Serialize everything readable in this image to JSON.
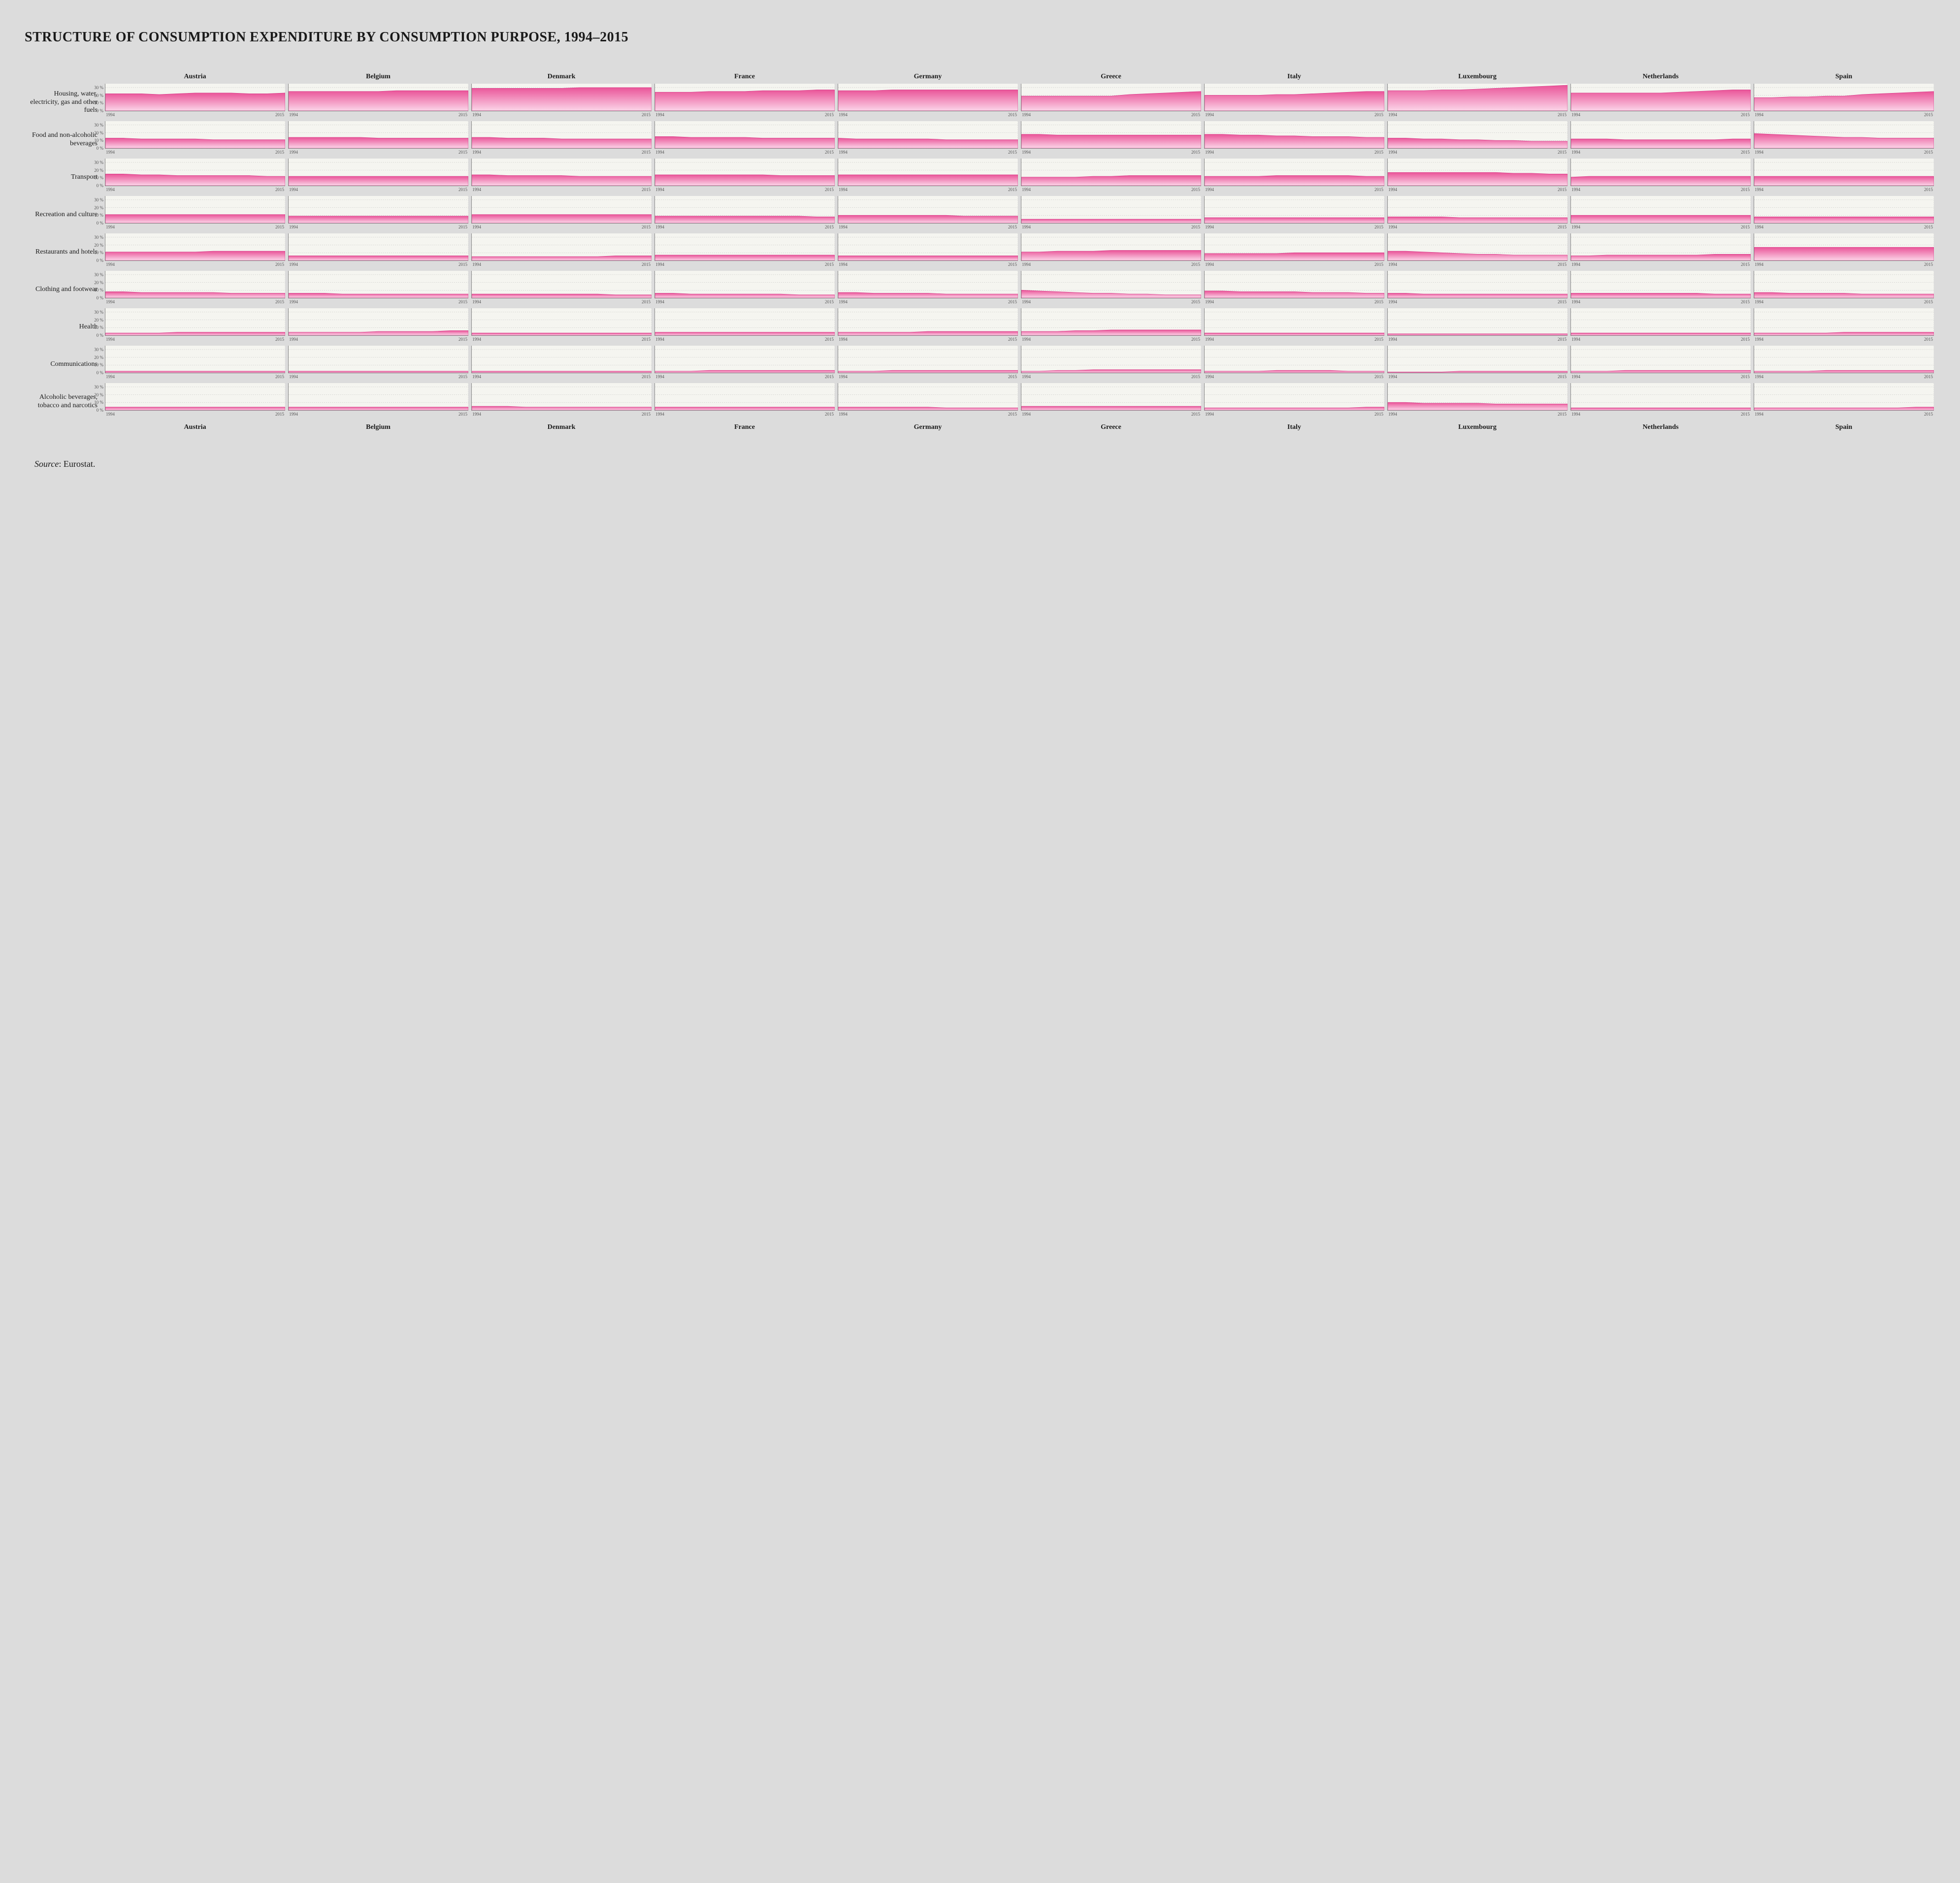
{
  "title": "STRUCTURE OF CONSUMPTION EXPENDITURE BY CONSUMPTION PURPOSE, 1994–2015",
  "source_label": "Source",
  "source_value": "Eurostat.",
  "x_start": "1994",
  "x_end": "2015",
  "ylim": [
    0,
    35
  ],
  "yticks": [
    0,
    10,
    20,
    30
  ],
  "ytick_labels": [
    "0 %",
    "10 %",
    "20 %",
    "30 %"
  ],
  "area_fill_top": "#ea5599",
  "area_fill_bottom": "#fbd5e8",
  "area_stroke": "#d63384",
  "grid_color": "#bbbbbb",
  "background_color": "#dcdcdc",
  "chart_bg": "#f5f5f0",
  "countries": [
    "Austria",
    "Belgium",
    "Denmark",
    "France",
    "Germany",
    "Greece",
    "Italy",
    "Luxembourg",
    "Netherlands",
    "Spain"
  ],
  "categories": [
    "Housing, water, electricity, gas and other fuels",
    "Food and non-alcoholic beverages",
    "Transport",
    "Recreation and culture",
    "Restaurants and hotels",
    "Clothing and footwear",
    "Health",
    "Communications",
    "Alcoholic beverages, tobacco and narcotics"
  ],
  "series": {
    "Housing, water, electricity, gas and other fuels": {
      "Austria": [
        22,
        22,
        22,
        21,
        22,
        23,
        23,
        23,
        22,
        22,
        23
      ],
      "Belgium": [
        25,
        25,
        25,
        25,
        25,
        25,
        26,
        26,
        26,
        26,
        26
      ],
      "Denmark": [
        29,
        29,
        29,
        29,
        29,
        29,
        30,
        30,
        30,
        30,
        30
      ],
      "France": [
        24,
        24,
        24,
        25,
        25,
        25,
        26,
        26,
        26,
        27,
        27
      ],
      "Germany": [
        26,
        26,
        26,
        27,
        27,
        27,
        27,
        27,
        27,
        27,
        27
      ],
      "Greece": [
        19,
        19,
        19,
        19,
        19,
        19,
        21,
        22,
        23,
        24,
        25
      ],
      "Italy": [
        20,
        20,
        20,
        20,
        21,
        21,
        22,
        23,
        24,
        25,
        25
      ],
      "Luxembourg": [
        26,
        26,
        26,
        27,
        27,
        28,
        29,
        30,
        31,
        32,
        33
      ],
      "Netherlands": [
        23,
        23,
        23,
        23,
        23,
        23,
        24,
        25,
        26,
        27,
        27
      ],
      "Spain": [
        17,
        17,
        18,
        18,
        19,
        19,
        21,
        22,
        23,
        24,
        25
      ]
    },
    "Food and non-alcoholic beverages": {
      "Austria": [
        13,
        13,
        12,
        12,
        12,
        12,
        11,
        11,
        11,
        11,
        11
      ],
      "Belgium": [
        14,
        14,
        14,
        14,
        14,
        13,
        13,
        13,
        13,
        13,
        13
      ],
      "Denmark": [
        14,
        14,
        13,
        13,
        13,
        12,
        12,
        12,
        12,
        12,
        12
      ],
      "France": [
        15,
        15,
        14,
        14,
        14,
        14,
        13,
        13,
        13,
        13,
        13
      ],
      "Germany": [
        13,
        12,
        12,
        12,
        12,
        12,
        11,
        11,
        11,
        11,
        11
      ],
      "Greece": [
        18,
        18,
        17,
        17,
        17,
        17,
        17,
        17,
        17,
        17,
        17
      ],
      "Italy": [
        18,
        18,
        17,
        17,
        16,
        16,
        15,
        15,
        15,
        14,
        14
      ],
      "Luxembourg": [
        13,
        13,
        12,
        12,
        11,
        11,
        10,
        10,
        9,
        9,
        9
      ],
      "Netherlands": [
        12,
        12,
        12,
        11,
        11,
        11,
        11,
        11,
        11,
        12,
        12
      ],
      "Spain": [
        19,
        18,
        17,
        16,
        15,
        14,
        14,
        13,
        13,
        13,
        13
      ]
    },
    "Transport": {
      "Austria": [
        15,
        15,
        14,
        14,
        13,
        13,
        13,
        13,
        13,
        12,
        12
      ],
      "Belgium": [
        12,
        12,
        12,
        12,
        12,
        12,
        12,
        12,
        12,
        12,
        12
      ],
      "Denmark": [
        14,
        14,
        13,
        13,
        13,
        13,
        12,
        12,
        12,
        12,
        12
      ],
      "France": [
        14,
        14,
        14,
        14,
        14,
        14,
        14,
        13,
        13,
        13,
        13
      ],
      "Germany": [
        14,
        14,
        14,
        14,
        14,
        14,
        14,
        14,
        14,
        14,
        14
      ],
      "Greece": [
        11,
        11,
        11,
        11,
        12,
        12,
        13,
        13,
        13,
        13,
        13
      ],
      "Italy": [
        12,
        12,
        12,
        12,
        13,
        13,
        13,
        13,
        13,
        12,
        12
      ],
      "Luxembourg": [
        17,
        17,
        17,
        17,
        17,
        17,
        17,
        16,
        16,
        15,
        15
      ],
      "Netherlands": [
        11,
        12,
        12,
        12,
        12,
        12,
        12,
        12,
        12,
        12,
        12
      ],
      "Spain": [
        12,
        12,
        12,
        12,
        12,
        12,
        12,
        12,
        12,
        12,
        12
      ]
    },
    "Recreation and culture": {
      "Austria": [
        11,
        11,
        11,
        11,
        11,
        11,
        11,
        11,
        11,
        11,
        11
      ],
      "Belgium": [
        9,
        9,
        9,
        9,
        9,
        9,
        9,
        9,
        9,
        9,
        9
      ],
      "Denmark": [
        11,
        11,
        11,
        11,
        11,
        11,
        11,
        11,
        11,
        11,
        11
      ],
      "France": [
        9,
        9,
        9,
        9,
        9,
        9,
        9,
        9,
        9,
        8,
        8
      ],
      "Germany": [
        10,
        10,
        10,
        10,
        10,
        10,
        10,
        9,
        9,
        9,
        9
      ],
      "Greece": [
        5,
        5,
        5,
        5,
        5,
        5,
        5,
        5,
        5,
        5,
        5
      ],
      "Italy": [
        7,
        7,
        7,
        7,
        7,
        7,
        7,
        7,
        7,
        7,
        7
      ],
      "Luxembourg": [
        8,
        8,
        8,
        8,
        7,
        7,
        7,
        7,
        7,
        7,
        7
      ],
      "Netherlands": [
        10,
        10,
        10,
        10,
        10,
        10,
        10,
        10,
        10,
        10,
        10
      ],
      "Spain": [
        8,
        8,
        8,
        8,
        8,
        8,
        8,
        8,
        8,
        8,
        8
      ]
    },
    "Restaurants and hotels": {
      "Austria": [
        11,
        11,
        11,
        11,
        11,
        11,
        12,
        12,
        12,
        12,
        12
      ],
      "Belgium": [
        6,
        6,
        6,
        6,
        6,
        6,
        6,
        6,
        6,
        6,
        6
      ],
      "Denmark": [
        5,
        5,
        5,
        5,
        5,
        5,
        5,
        5,
        6,
        6,
        6
      ],
      "France": [
        7,
        7,
        7,
        7,
        7,
        7,
        7,
        7,
        7,
        7,
        7
      ],
      "Germany": [
        6,
        6,
        6,
        6,
        6,
        6,
        6,
        6,
        6,
        6,
        6
      ],
      "Greece": [
        11,
        11,
        12,
        12,
        12,
        13,
        13,
        13,
        13,
        13,
        13
      ],
      "Italy": [
        9,
        9,
        9,
        9,
        9,
        10,
        10,
        10,
        10,
        10,
        10
      ],
      "Luxembourg": [
        12,
        12,
        11,
        10,
        9,
        8,
        8,
        7,
        7,
        7,
        7
      ],
      "Netherlands": [
        6,
        6,
        7,
        7,
        7,
        7,
        7,
        7,
        8,
        8,
        8
      ],
      "Spain": [
        17,
        17,
        17,
        17,
        17,
        17,
        17,
        17,
        17,
        17,
        17
      ]
    },
    "Clothing and footwear": {
      "Austria": [
        8,
        8,
        7,
        7,
        7,
        7,
        7,
        6,
        6,
        6,
        6
      ],
      "Belgium": [
        6,
        6,
        6,
        5,
        5,
        5,
        5,
        5,
        5,
        5,
        5
      ],
      "Denmark": [
        5,
        5,
        5,
        5,
        5,
        5,
        5,
        5,
        4,
        4,
        4
      ],
      "France": [
        6,
        6,
        5,
        5,
        5,
        5,
        5,
        5,
        4,
        4,
        4
      ],
      "Germany": [
        7,
        7,
        6,
        6,
        6,
        6,
        5,
        5,
        5,
        5,
        5
      ],
      "Greece": [
        10,
        9,
        8,
        7,
        6,
        6,
        5,
        5,
        4,
        4,
        4
      ],
      "Italy": [
        9,
        9,
        8,
        8,
        8,
        8,
        7,
        7,
        7,
        6,
        6
      ],
      "Luxembourg": [
        6,
        6,
        5,
        5,
        5,
        5,
        5,
        5,
        5,
        5,
        5
      ],
      "Netherlands": [
        6,
        6,
        6,
        6,
        6,
        6,
        6,
        6,
        5,
        5,
        5
      ],
      "Spain": [
        7,
        7,
        6,
        6,
        6,
        6,
        5,
        5,
        5,
        5,
        5
      ]
    },
    "Health": {
      "Austria": [
        3,
        3,
        3,
        3,
        4,
        4,
        4,
        4,
        4,
        4,
        4
      ],
      "Belgium": [
        4,
        4,
        4,
        4,
        4,
        5,
        5,
        5,
        5,
        6,
        6
      ],
      "Denmark": [
        3,
        3,
        3,
        3,
        3,
        3,
        3,
        3,
        3,
        3,
        3
      ],
      "France": [
        4,
        4,
        4,
        4,
        4,
        4,
        4,
        4,
        4,
        4,
        4
      ],
      "Germany": [
        4,
        4,
        4,
        4,
        4,
        5,
        5,
        5,
        5,
        5,
        5
      ],
      "Greece": [
        5,
        5,
        5,
        6,
        6,
        7,
        7,
        7,
        7,
        7,
        7
      ],
      "Italy": [
        3,
        3,
        3,
        3,
        3,
        3,
        3,
        3,
        3,
        3,
        3
      ],
      "Luxembourg": [
        2,
        2,
        2,
        2,
        2,
        2,
        2,
        2,
        2,
        2,
        2
      ],
      "Netherlands": [
        3,
        3,
        3,
        3,
        3,
        3,
        3,
        3,
        3,
        3,
        3
      ],
      "Spain": [
        3,
        3,
        3,
        3,
        3,
        4,
        4,
        4,
        4,
        4,
        4
      ]
    },
    "Communications": {
      "Austria": [
        2,
        2,
        2,
        2,
        2,
        2,
        2,
        2,
        2,
        2,
        2
      ],
      "Belgium": [
        2,
        2,
        2,
        2,
        2,
        2,
        2,
        2,
        2,
        2,
        2
      ],
      "Denmark": [
        2,
        2,
        2,
        2,
        2,
        2,
        2,
        2,
        2,
        2,
        2
      ],
      "France": [
        2,
        2,
        2,
        3,
        3,
        3,
        3,
        3,
        3,
        3,
        3
      ],
      "Germany": [
        2,
        2,
        2,
        3,
        3,
        3,
        3,
        3,
        3,
        3,
        3
      ],
      "Greece": [
        2,
        2,
        3,
        3,
        4,
        4,
        4,
        4,
        4,
        4,
        4
      ],
      "Italy": [
        2,
        2,
        2,
        2,
        3,
        3,
        3,
        3,
        2,
        2,
        2
      ],
      "Luxembourg": [
        1,
        1,
        1,
        1,
        2,
        2,
        2,
        2,
        2,
        2,
        2
      ],
      "Netherlands": [
        2,
        2,
        2,
        3,
        3,
        3,
        3,
        3,
        3,
        3,
        3
      ],
      "Spain": [
        2,
        2,
        2,
        2,
        3,
        3,
        3,
        3,
        3,
        3,
        3
      ]
    },
    "Alcoholic beverages, tobacco and narcotics": {
      "Austria": [
        4,
        4,
        4,
        4,
        4,
        4,
        4,
        4,
        4,
        4,
        4
      ],
      "Belgium": [
        4,
        4,
        4,
        4,
        4,
        4,
        4,
        4,
        4,
        4,
        4
      ],
      "Denmark": [
        5,
        5,
        5,
        4,
        4,
        4,
        4,
        4,
        4,
        4,
        4
      ],
      "France": [
        4,
        4,
        4,
        4,
        4,
        4,
        4,
        4,
        4,
        4,
        4
      ],
      "Germany": [
        4,
        4,
        4,
        4,
        4,
        4,
        3,
        3,
        3,
        3,
        3
      ],
      "Greece": [
        5,
        5,
        5,
        5,
        5,
        5,
        5,
        5,
        5,
        5,
        5
      ],
      "Italy": [
        3,
        3,
        3,
        3,
        3,
        3,
        3,
        3,
        3,
        4,
        4
      ],
      "Luxembourg": [
        10,
        10,
        9,
        9,
        9,
        9,
        8,
        8,
        8,
        8,
        8
      ],
      "Netherlands": [
        3,
        3,
        3,
        3,
        3,
        3,
        3,
        3,
        3,
        3,
        3
      ],
      "Spain": [
        3,
        3,
        3,
        3,
        3,
        3,
        3,
        3,
        3,
        4,
        4
      ]
    }
  }
}
